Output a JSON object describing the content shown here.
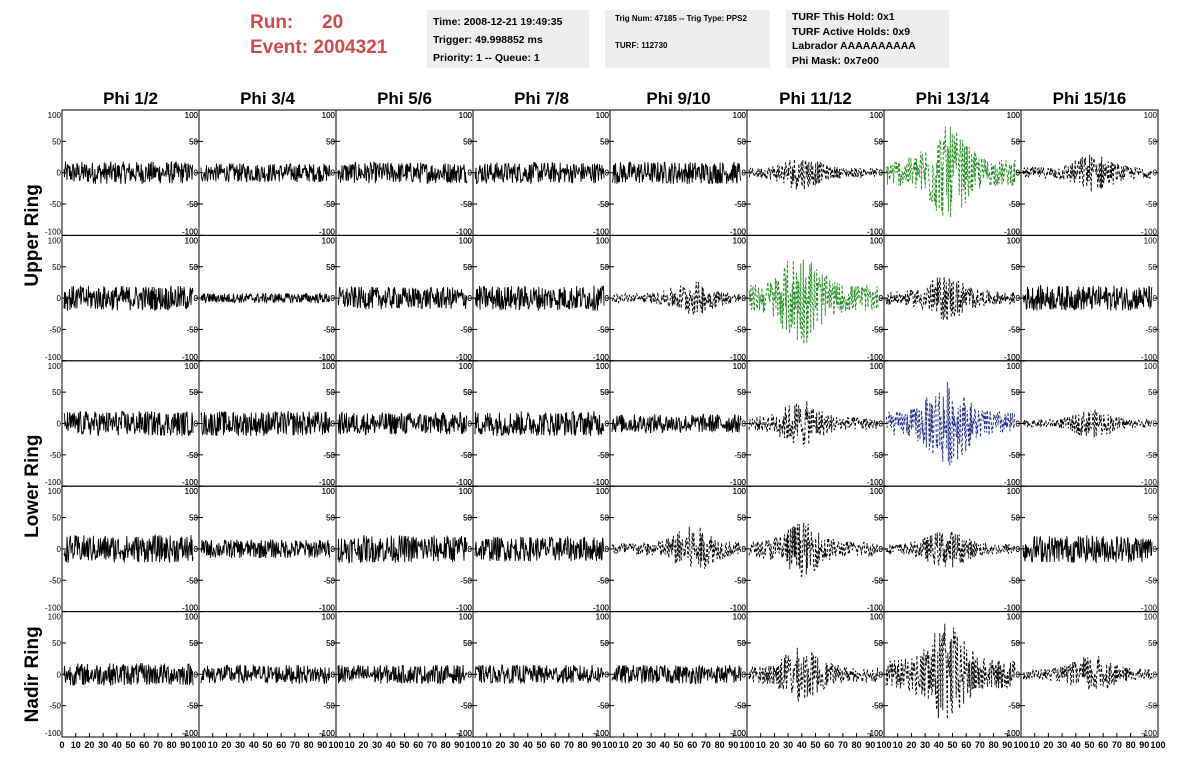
{
  "header": {
    "run_label": "Run:",
    "run_value": "20",
    "event_label": "Event:",
    "event_value": "2004321",
    "box1": {
      "time": "Time: 2008-12-21 19:49:35",
      "trigger": "Trigger: 49.998852 ms",
      "priority": "Priority: 1 -- Queue: 1"
    },
    "box2": {
      "trig": "Trig Num: 47185 -- Trig Type: PPS2",
      "turf": "TURF: 112730"
    },
    "box3": {
      "this_hold": "TURF This Hold: 0x1",
      "active_holds": "TURF Active Holds: 0x9",
      "labrador": "Labrador AAAAAAAAAA",
      "phi_mask": "Phi Mask: 0x7e00"
    }
  },
  "chart_data": {
    "type": "line",
    "columns": [
      "Phi 1/2",
      "Phi 3/4",
      "Phi 5/6",
      "Phi 7/8",
      "Phi 9/10",
      "Phi 11/12",
      "Phi 13/14",
      "Phi 15/16"
    ],
    "row_labels": [
      "Upper Ring",
      "Lower Ring",
      "Nadir Ring"
    ],
    "ylim": [
      -100,
      100
    ],
    "xlim": [
      0,
      100
    ],
    "y_ticks": [
      -100,
      -50,
      0,
      50,
      100
    ],
    "x_ticks": [
      0,
      10,
      20,
      30,
      40,
      50,
      60,
      70,
      80,
      90,
      100
    ],
    "colors": {
      "normal": "#000000",
      "triggered_green": "#1e8c1e",
      "triggered_blue": "#1f2a8c"
    },
    "panels": [
      [
        "solid",
        "solid",
        "solid",
        "solid",
        "solid",
        "dashed",
        "dashed-green",
        "dashed"
      ],
      [
        "solid",
        "solid",
        "solid",
        "solid",
        "dashed",
        "dashed-green",
        "dashed",
        "solid"
      ],
      [
        "solid",
        "solid",
        "solid",
        "solid",
        "solid",
        "dashed",
        "dashed-blue",
        "dashed"
      ],
      [
        "solid",
        "solid",
        "solid",
        "solid",
        "dashed",
        "dashed",
        "dashed",
        "solid"
      ],
      [
        "solid",
        "solid",
        "solid",
        "solid",
        "solid",
        "dashed",
        "dashed",
        "dashed"
      ]
    ],
    "amplitude": [
      [
        18,
        15,
        17,
        17,
        18,
        22,
        60,
        25
      ],
      [
        20,
        8,
        18,
        20,
        22,
        60,
        30,
        20
      ],
      [
        20,
        20,
        18,
        20,
        15,
        30,
        55,
        18
      ],
      [
        22,
        15,
        22,
        20,
        30,
        35,
        25,
        22
      ],
      [
        18,
        15,
        15,
        15,
        15,
        35,
        65,
        25
      ]
    ]
  }
}
